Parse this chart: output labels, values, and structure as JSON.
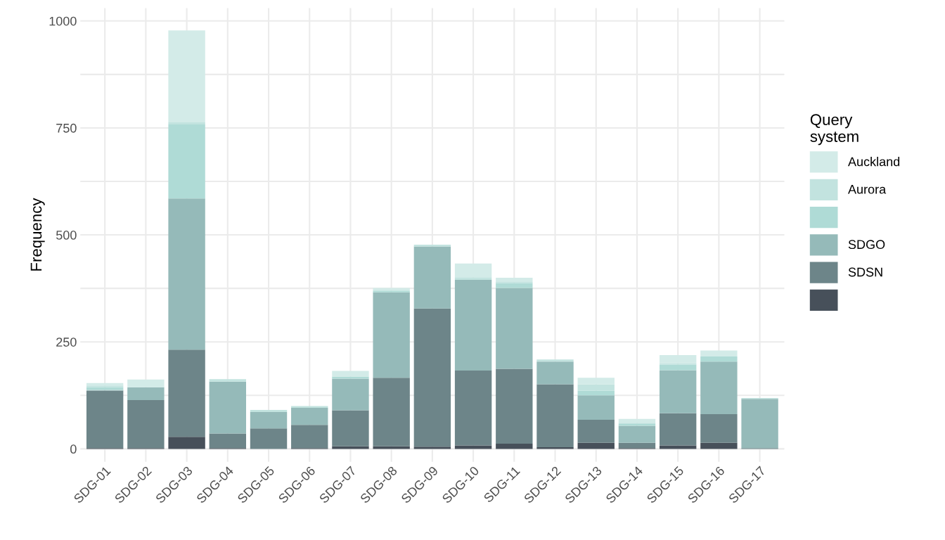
{
  "chart_data": {
    "type": "bar",
    "stacked": true,
    "ylabel": "Frequency",
    "legend_title": "Query\nsystem",
    "legend": "right",
    "grid": true,
    "categories": [
      "SDG-01",
      "SDG-02",
      "SDG-03",
      "SDG-04",
      "SDG-05",
      "SDG-06",
      "SDG-07",
      "SDG-08",
      "SDG-09",
      "SDG-10",
      "SDG-11",
      "SDG-12",
      "SDG-13",
      "SDG-14",
      "SDG-15",
      "SDG-16",
      "SDG-17"
    ],
    "ylim": [
      -30,
      1030
    ],
    "yticks": [
      0,
      {
        "value": 125,
        "label": null
      },
      250,
      {
        "value": 375,
        "label": null
      },
      500,
      {
        "value": 625,
        "label": null
      },
      750,
      {
        "value": 875,
        "label": null
      },
      1000
    ],
    "series": [
      {
        "color": "#47505a",
        "values": [
          2,
          2,
          28,
          2,
          0,
          2,
          6,
          6,
          5,
          8,
          12,
          4,
          14,
          2,
          8,
          14,
          0
        ]
      },
      {
        "name": "SDSN",
        "color": "#6d8589",
        "values": [
          134,
          112,
          204,
          34,
          48,
          54,
          84,
          160,
          323,
          175,
          175,
          147,
          54,
          12,
          75,
          67,
          2
        ]
      },
      {
        "name": "SDGO",
        "color": "#95bab9",
        "values": [
          2,
          30,
          353,
          121,
          38,
          40,
          74,
          200,
          145,
          212,
          189,
          53,
          57,
          40,
          101,
          123,
          115
        ]
      },
      {
        "color": "#afdbd6",
        "values": [
          6,
          0,
          173,
          null,
          0,
          0,
          5,
          4,
          0,
          0,
          11,
          0,
          11,
          4,
          13,
          12,
          0
        ]
      },
      {
        "name": "Aurora",
        "color": "#c2e3df",
        "values": [
          4,
          0,
          5,
          6,
          5,
          4,
          0,
          0,
          4,
          6,
          3,
          5,
          15,
          3,
          3,
          null,
          2
        ]
      },
      {
        "name": "Auckland",
        "color": "#d3ebe8",
        "values": [
          6,
          18,
          215,
          0,
          0,
          0,
          13,
          6,
          0,
          32,
          10,
          0,
          15,
          9,
          19,
          14,
          0
        ]
      }
    ]
  }
}
